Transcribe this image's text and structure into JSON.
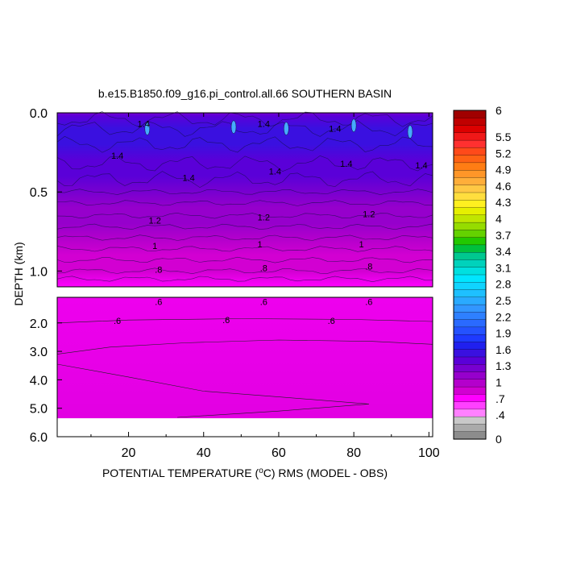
{
  "chart_data": {
    "type": "heatmap",
    "title": "b.e15.B1850.f09_g16.pi_control.all.66 SOUTHERN BASIN",
    "xlabel": "POTENTIAL TEMPERATURE (",
    "xlabel_unit_sup": "o",
    "xlabel_unit": "C) RMS (MODEL - OBS)",
    "ylabel": "DEPTH (km)",
    "x_ticks": [
      "20",
      "40",
      "60",
      "80",
      "100"
    ],
    "xlim": [
      1,
      101
    ],
    "upper_panel": {
      "ylim": [
        0,
        1.1
      ],
      "y_ticks": [
        "0.0",
        "0.5",
        "1.0"
      ],
      "depth_km": [
        0.0,
        0.02,
        0.1,
        0.2,
        0.3,
        0.4,
        0.5,
        0.6,
        0.7,
        0.8,
        0.9,
        1.0,
        1.1
      ],
      "rms_values": [
        1.3,
        1.45,
        1.55,
        1.5,
        1.45,
        1.35,
        1.25,
        1.15,
        1.1,
        1.0,
        0.9,
        0.8,
        0.7
      ],
      "contour_labels": [
        {
          "text": "1.4",
          "x": 24,
          "depth": 0.07
        },
        {
          "text": "1.4",
          "x": 56,
          "depth": 0.07
        },
        {
          "text": "1.4",
          "x": 75,
          "depth": 0.1
        },
        {
          "text": "1.4",
          "x": 17,
          "depth": 0.27
        },
        {
          "text": "1.4",
          "x": 36,
          "depth": 0.41
        },
        {
          "text": "1.4",
          "x": 59,
          "depth": 0.37
        },
        {
          "text": "1.4",
          "x": 78,
          "depth": 0.32
        },
        {
          "text": "1.4",
          "x": 98,
          "depth": 0.33
        },
        {
          "text": "1.2",
          "x": 27,
          "depth": 0.68
        },
        {
          "text": "1.2",
          "x": 56,
          "depth": 0.66
        },
        {
          "text": "1.2",
          "x": 84,
          "depth": 0.64
        },
        {
          "text": "1",
          "x": 27,
          "depth": 0.84
        },
        {
          "text": "1",
          "x": 55,
          "depth": 0.83
        },
        {
          "text": "1",
          "x": 82,
          "depth": 0.83
        },
        {
          "text": ".8",
          "x": 28,
          "depth": 0.99
        },
        {
          "text": ".8",
          "x": 56,
          "depth": 0.98
        },
        {
          "text": ".8",
          "x": 84,
          "depth": 0.97
        }
      ]
    },
    "lower_panel": {
      "ylim": [
        1.1,
        6.0
      ],
      "y_ticks": [
        "2.0",
        "3.0",
        "4.0",
        "5.0",
        "6.0"
      ],
      "data_bottom_depth_km": 5.35,
      "rms_range": [
        0.6,
        0.7
      ],
      "contour_labels": [
        {
          "text": ".6",
          "x": 28,
          "depth": 1.25
        },
        {
          "text": ".6",
          "x": 56,
          "depth": 1.25
        },
        {
          "text": ".6",
          "x": 84,
          "depth": 1.25
        },
        {
          "text": ".6",
          "x": 17,
          "depth": 1.92
        },
        {
          "text": ".6",
          "x": 46,
          "depth": 1.9
        },
        {
          "text": ".6",
          "x": 74,
          "depth": 1.92
        }
      ]
    },
    "colorbar": {
      "labels": [
        "6",
        "5.5",
        "5.2",
        "4.9",
        "4.6",
        "4.3",
        "4",
        "3.7",
        "3.4",
        "3.1",
        "2.8",
        "2.5",
        "2.2",
        "1.9",
        "1.6",
        "1.3",
        "1",
        ".7",
        ".4",
        "0"
      ],
      "colors": [
        "#a00000",
        "#c00000",
        "#dd0000",
        "#f01818",
        "#ff3030",
        "#ff4a1a",
        "#ff6214",
        "#ff7d14",
        "#ff9628",
        "#ffae3a",
        "#ffc844",
        "#ffde3e",
        "#fff020",
        "#e6f000",
        "#c0e600",
        "#96dc00",
        "#64d200",
        "#22c800",
        "#00c03c",
        "#00c890",
        "#00d2bc",
        "#00e0e0",
        "#00e6ff",
        "#10d4ff",
        "#1ec0ff",
        "#2aaaff",
        "#3296ff",
        "#2e80ff",
        "#2a6aff",
        "#2452ff",
        "#1e3aff",
        "#2020ee",
        "#3a10e0",
        "#5a00d8",
        "#7800d0",
        "#9600cc",
        "#b400cc",
        "#d200d2",
        "#ff00ff",
        "#ff40ff",
        "#ff80ff",
        "#c8c8c8",
        "#aaaaaa",
        "#8c8c8c"
      ]
    }
  }
}
